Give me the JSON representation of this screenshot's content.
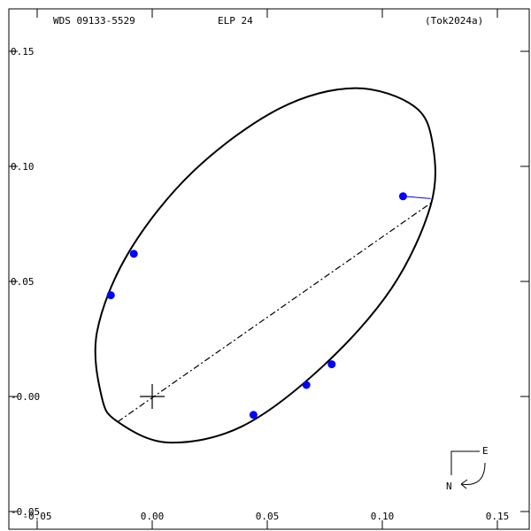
{
  "header": {
    "left": "WDS 09133-5529",
    "center": "ELP  24",
    "right": "(Tok2024a)"
  },
  "compass": {
    "east_label": "E",
    "north_label": "N"
  },
  "chart_data": {
    "type": "scatter",
    "title": "",
    "xlabel": "",
    "ylabel": "",
    "xlim": [
      -0.05,
      0.16
    ],
    "ylim": [
      -0.05,
      0.17
    ],
    "x_ticks": [
      -0.05,
      0.0,
      0.05,
      0.1,
      0.15
    ],
    "x_tick_labels": [
      "-0.05",
      "0.00",
      "0.05",
      "0.10",
      "0.15"
    ],
    "y_ticks": [
      -0.05,
      0.0,
      0.05,
      0.1,
      0.15
    ],
    "y_tick_labels": [
      "-0.05",
      "-0.00",
      "0.05",
      "0.10",
      "0.15"
    ],
    "grid": false,
    "primary_star": [
      0.0,
      0.0
    ],
    "observations": [
      {
        "x": 0.109,
        "y": 0.087,
        "residual_to": [
          0.121,
          0.086
        ]
      },
      {
        "x": -0.008,
        "y": 0.062
      },
      {
        "x": -0.018,
        "y": 0.044
      },
      {
        "x": 0.044,
        "y": -0.008
      },
      {
        "x": 0.067,
        "y": 0.005
      },
      {
        "x": 0.078,
        "y": 0.014
      }
    ],
    "orbit_ellipse": [
      [
        0.007,
        -0.02
      ],
      [
        0.039,
        -0.013
      ],
      [
        0.074,
        0.013
      ],
      [
        0.104,
        0.047
      ],
      [
        0.121,
        0.083
      ],
      [
        0.122,
        0.109
      ],
      [
        0.114,
        0.126
      ],
      [
        0.088,
        0.134
      ],
      [
        0.055,
        0.125
      ],
      [
        0.018,
        0.098
      ],
      [
        -0.01,
        0.063
      ],
      [
        -0.024,
        0.028
      ],
      [
        -0.022,
        0.0
      ],
      [
        -0.015,
        -0.011
      ]
    ],
    "line_of_nodes": [
      [
        -0.015,
        -0.011
      ],
      [
        0.121,
        0.084
      ]
    ],
    "colors": {
      "orbit": "#000000",
      "points": "#0000ff",
      "residual": "#0000ff",
      "node_line": "#000000"
    }
  }
}
